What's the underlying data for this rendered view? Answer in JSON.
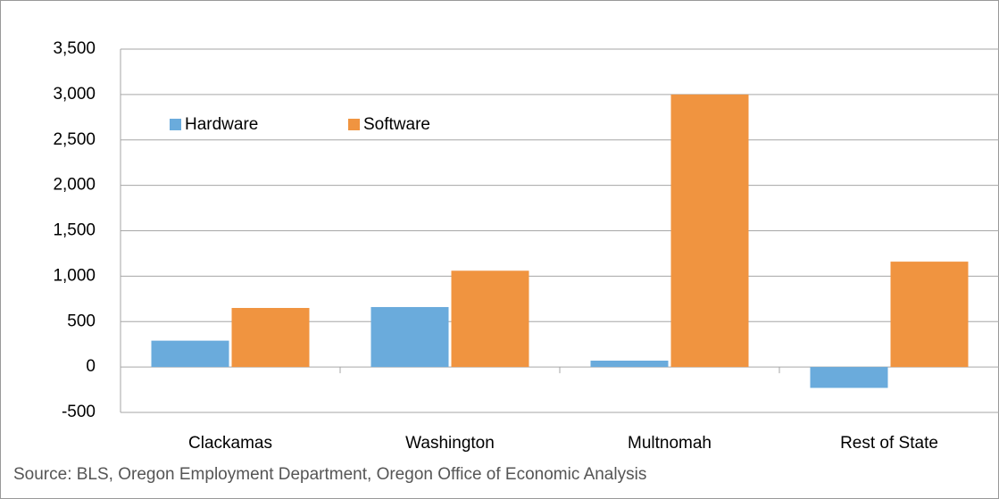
{
  "chart_data": {
    "type": "bar",
    "categories": [
      "Clackamas",
      "Washington",
      "Multnomah",
      "Rest of State"
    ],
    "series": [
      {
        "name": "Hardware",
        "color": "#6aabdc",
        "values": [
          290,
          660,
          70,
          -230
        ]
      },
      {
        "name": "Software",
        "color": "#f09440",
        "values": [
          650,
          1060,
          3000,
          1160
        ]
      }
    ],
    "ylim": [
      -500,
      3500
    ],
    "yticks": [
      -500,
      0,
      500,
      {
        "value": 1000,
        "label": "1,000"
      },
      {
        "value": 1500,
        "label": "1,500"
      },
      {
        "value": 2000,
        "label": "2,000"
      },
      {
        "value": 2500,
        "label": "2,500"
      },
      {
        "value": 3000,
        "label": "3,000"
      },
      {
        "value": 3500,
        "label": "3,500"
      }
    ],
    "grid": true,
    "legend": "top-left",
    "source": "Source: BLS, Oregon Employment Department, Oregon Office of Economic Analysis"
  }
}
